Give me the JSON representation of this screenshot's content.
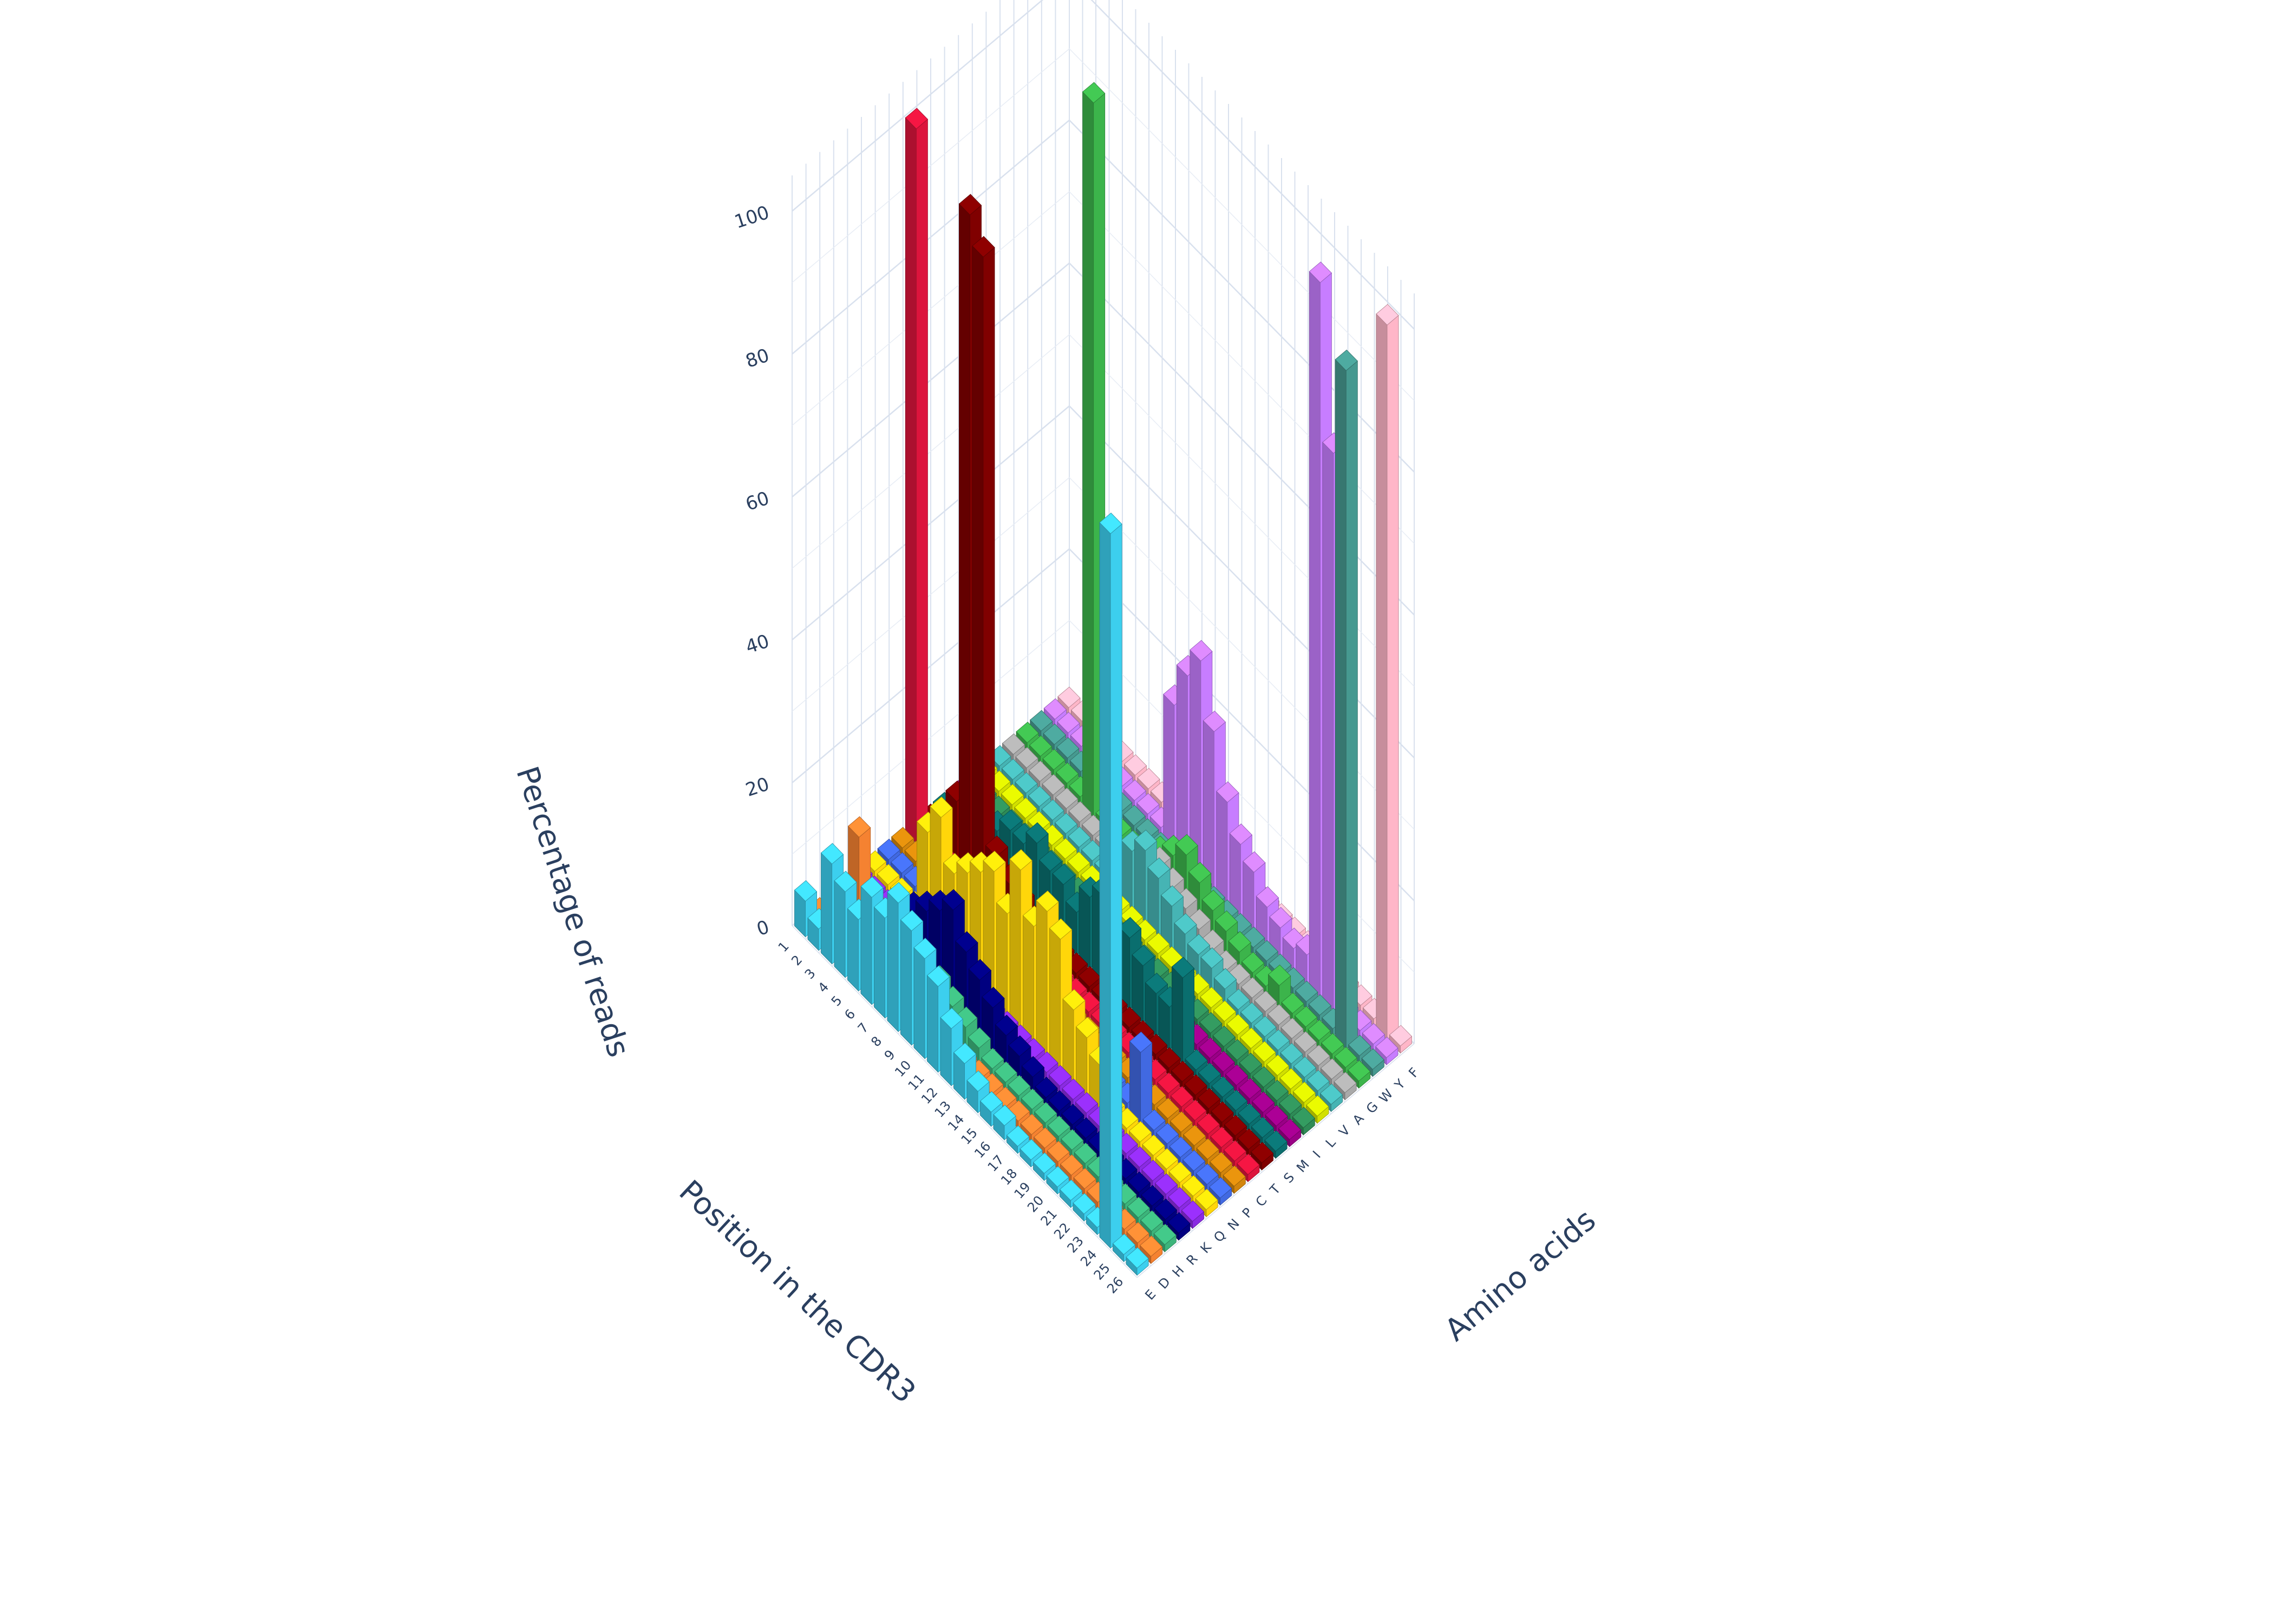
{
  "chart_data": {
    "type": "bar3d",
    "xlabel": "Position in the CDR3",
    "ylabel": "Amino acids",
    "zlabel": "Percentage of reads",
    "x_categories": [
      "1",
      "2",
      "3",
      "4",
      "5",
      "6",
      "7",
      "8",
      "9",
      "10",
      "11",
      "12",
      "13",
      "14",
      "15",
      "16",
      "17",
      "18",
      "19",
      "20",
      "21",
      "22",
      "23",
      "24",
      "25",
      "26"
    ],
    "y_categories": [
      "E",
      "D",
      "H",
      "R",
      "K",
      "Q",
      "N",
      "P",
      "C",
      "T",
      "S",
      "M",
      "I",
      "L",
      "V",
      "A",
      "G",
      "W",
      "Y",
      "F"
    ],
    "z_ticks": [
      "0",
      "20",
      "40",
      "60",
      "80",
      "100"
    ],
    "zlim": [
      0,
      105
    ],
    "grid": true,
    "legend": "none",
    "series": [
      {
        "aa": "E",
        "color": "#3ccfee",
        "values": [
          5,
          3,
          14,
          12,
          10,
          15,
          14,
          18,
          16,
          14,
          12,
          8,
          5,
          3,
          2,
          2,
          1,
          1,
          1,
          1,
          1,
          1,
          1,
          100,
          1,
          1
        ]
      },
      {
        "aa": "D",
        "color": "#f58231",
        "values": [
          1,
          1,
          1,
          18,
          10,
          8,
          6,
          4,
          3,
          2,
          1,
          1,
          1,
          1,
          1,
          1,
          1,
          1,
          1,
          1,
          1,
          1,
          1,
          1,
          1,
          1
        ]
      },
      {
        "aa": "H",
        "color": "#3cb47b",
        "values": [
          1,
          1,
          1,
          1,
          1,
          1,
          1,
          1,
          5,
          4,
          3,
          2,
          1,
          1,
          1,
          1,
          1,
          1,
          1,
          1,
          1,
          1,
          1,
          1,
          1,
          1
        ]
      },
      {
        "aa": "R",
        "color": "#000080",
        "values": [
          1,
          1,
          1,
          2,
          6,
          8,
          10,
          12,
          14,
          10,
          8,
          6,
          4,
          3,
          2,
          1,
          1,
          1,
          1,
          1,
          1,
          1,
          1,
          1,
          1,
          1
        ]
      },
      {
        "aa": "K",
        "color": "#8a2be2",
        "values": [
          1,
          1,
          1,
          1,
          1,
          1,
          1,
          1,
          1,
          1,
          1,
          1,
          1,
          1,
          1,
          1,
          1,
          1,
          1,
          1,
          1,
          1,
          1,
          1,
          1,
          1
        ]
      },
      {
        "aa": "Q",
        "color": "#ffd60a",
        "values": [
          1,
          1,
          1,
          1,
          14,
          18,
          12,
          14,
          16,
          18,
          14,
          22,
          16,
          20,
          18,
          10,
          8,
          6,
          1,
          1,
          1,
          1,
          1,
          1,
          1,
          1
        ]
      },
      {
        "aa": "N",
        "color": "#4169e1",
        "values": [
          1,
          1,
          1,
          1,
          1,
          6,
          8,
          7,
          6,
          5,
          4,
          3,
          2,
          1,
          1,
          1,
          1,
          1,
          1,
          10,
          1,
          1,
          1,
          1,
          1,
          1
        ]
      },
      {
        "aa": "P",
        "color": "#d2850c",
        "values": [
          1,
          1,
          1,
          1,
          1,
          1,
          8,
          6,
          4,
          2,
          1,
          1,
          1,
          1,
          1,
          1,
          1,
          1,
          1,
          1,
          1,
          1,
          1,
          1,
          1,
          1
        ]
      },
      {
        "aa": "C",
        "color": "#dc143c",
        "values": [
          100,
          1,
          1,
          1,
          1,
          1,
          1,
          1,
          1,
          1,
          1,
          1,
          1,
          1,
          1,
          1,
          1,
          1,
          1,
          1,
          1,
          1,
          1,
          1,
          1,
          1
        ]
      },
      {
        "aa": "T",
        "color": "#800000",
        "values": [
          1,
          1,
          8,
          92,
          88,
          6,
          4,
          3,
          2,
          1,
          1,
          1,
          1,
          1,
          1,
          1,
          1,
          1,
          1,
          1,
          1,
          1,
          1,
          1,
          1,
          1
        ]
      },
      {
        "aa": "S",
        "color": "#0a6e6e",
        "values": [
          1,
          1,
          1,
          1,
          6,
          8,
          8,
          10,
          8,
          8,
          6,
          10,
          12,
          8,
          10,
          8,
          6,
          6,
          12,
          1,
          1,
          1,
          1,
          1,
          1,
          1
        ]
      },
      {
        "aa": "M",
        "color": "#9a0086",
        "values": [
          1,
          1,
          1,
          1,
          1,
          1,
          1,
          1,
          1,
          1,
          1,
          1,
          1,
          1,
          1,
          1,
          1,
          1,
          1,
          1,
          1,
          1,
          1,
          1,
          1,
          1
        ]
      },
      {
        "aa": "I",
        "color": "#2e8b57",
        "values": [
          1,
          1,
          1,
          1,
          1,
          1,
          1,
          1,
          1,
          1,
          1,
          1,
          1,
          1,
          1,
          1,
          1,
          1,
          1,
          1,
          1,
          1,
          1,
          1,
          1,
          1
        ]
      },
      {
        "aa": "L",
        "color": "#d2e000",
        "values": [
          1,
          1,
          1,
          1,
          1,
          1,
          1,
          1,
          1,
          1,
          1,
          1,
          1,
          1,
          1,
          1,
          1,
          1,
          1,
          1,
          1,
          1,
          1,
          1,
          1,
          1
        ]
      },
      {
        "aa": "V",
        "color": "#46b4b4",
        "values": [
          1,
          1,
          1,
          1,
          1,
          1,
          1,
          1,
          1,
          4,
          8,
          10,
          8,
          6,
          4,
          3,
          3,
          2,
          1,
          1,
          1,
          1,
          1,
          1,
          1,
          1
        ]
      },
      {
        "aa": "A",
        "color": "#a9a9a9",
        "values": [
          1,
          1,
          1,
          1,
          1,
          1,
          1,
          1,
          1,
          1,
          4,
          6,
          5,
          4,
          3,
          2,
          1,
          1,
          1,
          1,
          1,
          1,
          1,
          1,
          1,
          1
        ]
      },
      {
        "aa": "G",
        "color": "#3cb44b",
        "values": [
          1,
          1,
          1,
          1,
          1,
          100,
          1,
          1,
          1,
          1,
          4,
          6,
          8,
          6,
          4,
          3,
          2,
          1,
          1,
          3,
          1,
          1,
          1,
          1,
          1,
          1
        ]
      },
      {
        "aa": "W",
        "color": "#469990",
        "values": [
          1,
          1,
          1,
          1,
          1,
          1,
          1,
          1,
          1,
          1,
          1,
          1,
          1,
          1,
          1,
          1,
          1,
          1,
          1,
          1,
          1,
          1,
          1,
          95,
          1,
          1
        ]
      },
      {
        "aa": "Y",
        "color": "#c77dff",
        "values": [
          1,
          1,
          1,
          1,
          1,
          1,
          1,
          1,
          1,
          20,
          26,
          30,
          22,
          14,
          10,
          8,
          5,
          4,
          3,
          4,
          100,
          78,
          1,
          1,
          1,
          1
        ]
      },
      {
        "aa": "F",
        "color": "#ffb6c8",
        "values": [
          1,
          1,
          1,
          1,
          1,
          1,
          1,
          1,
          1,
          1,
          1,
          1,
          1,
          1,
          1,
          1,
          1,
          1,
          1,
          1,
          1,
          1,
          1,
          1,
          100,
          1
        ]
      }
    ]
  }
}
